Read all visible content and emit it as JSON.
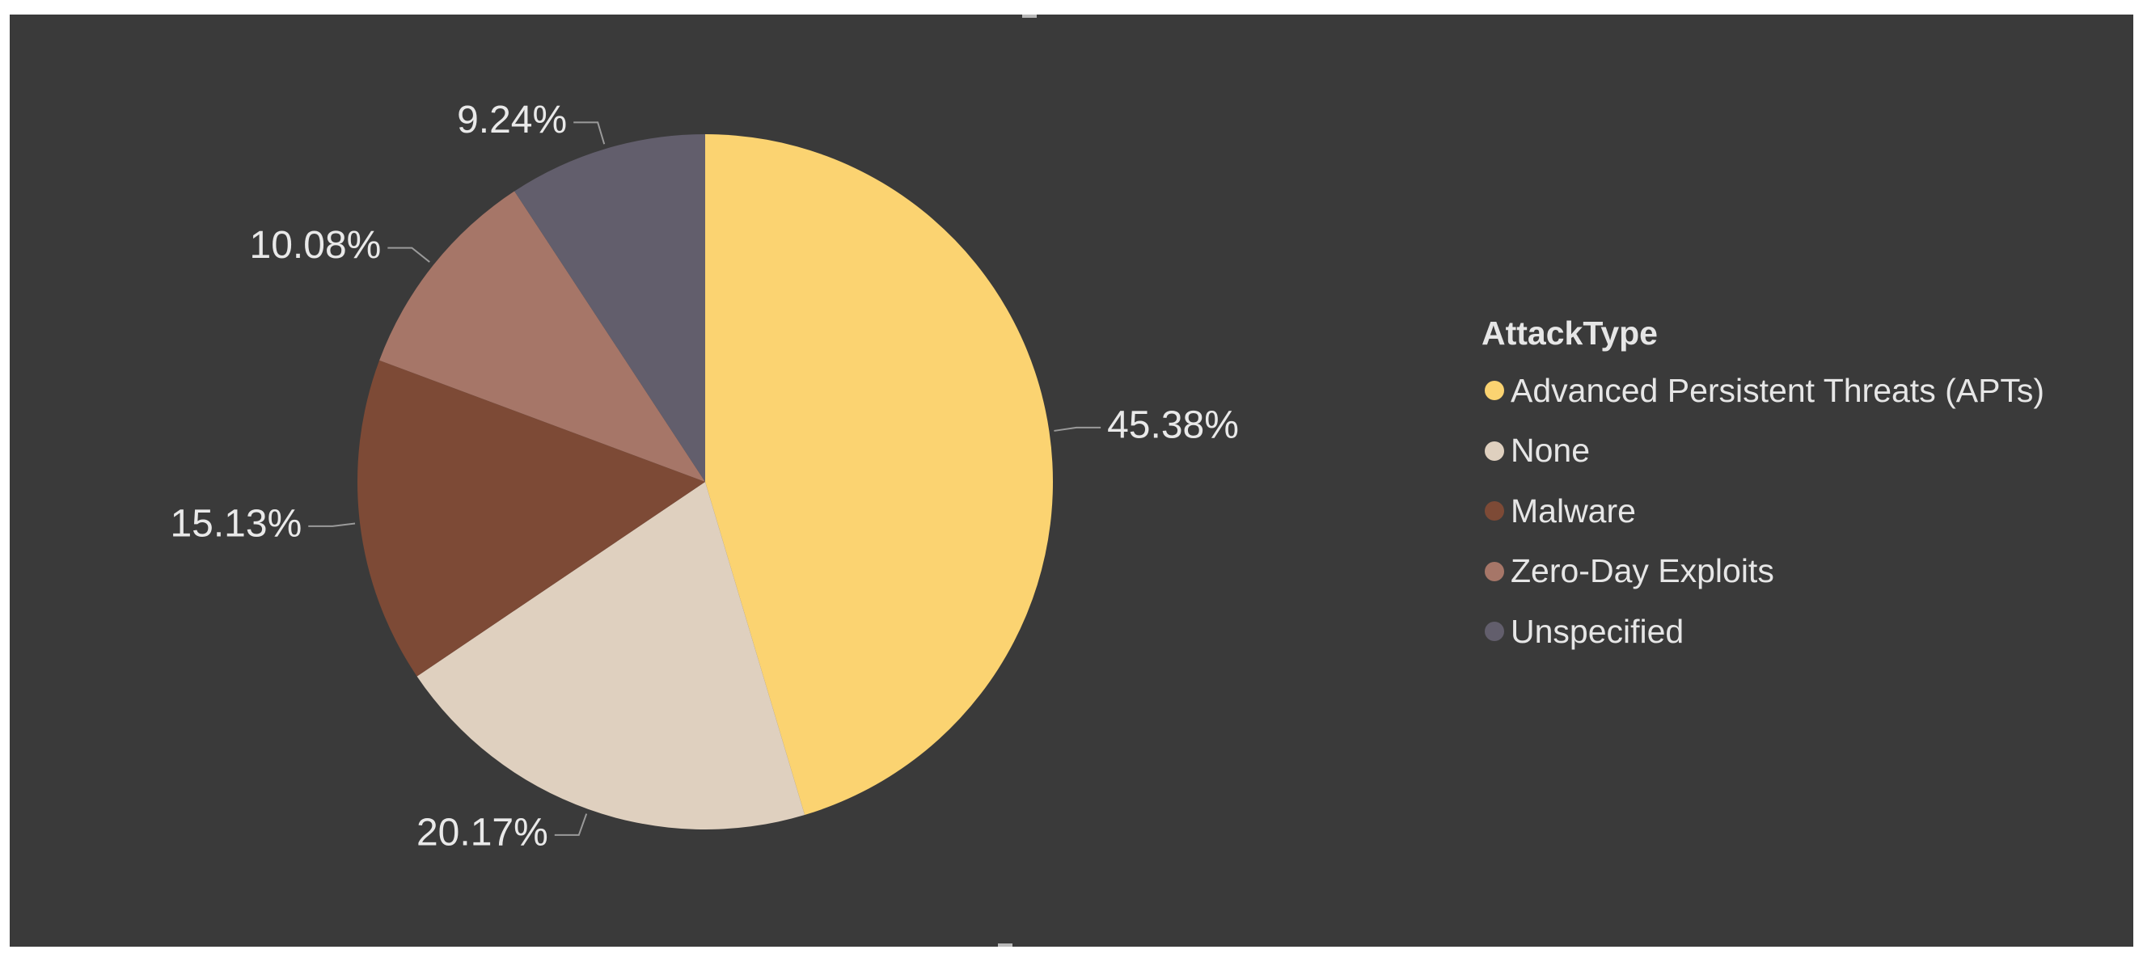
{
  "colors": {
    "background": "#3a3a3a",
    "label_text": "#e9e9e9",
    "leader_line": "#9a9a9a"
  },
  "chart_data": {
    "type": "pie",
    "legend_title": "AttackType",
    "legend_position": "right",
    "slices": [
      {
        "name": "Advanced Persistent Threats (APTs)",
        "value": 45.38,
        "label": "45.38%",
        "color": "#fbd371"
      },
      {
        "name": "None",
        "value": 20.17,
        "label": "20.17%",
        "color": "#dfd0bf"
      },
      {
        "name": "Malware",
        "value": 15.13,
        "label": "15.13%",
        "color": "#7d4a36"
      },
      {
        "name": "Zero-Day Exploits",
        "value": 10.08,
        "label": "10.08%",
        "color": "#a67668"
      },
      {
        "name": "Unspecified",
        "value": 9.24,
        "label": "9.24%",
        "color": "#625e6c"
      }
    ]
  }
}
